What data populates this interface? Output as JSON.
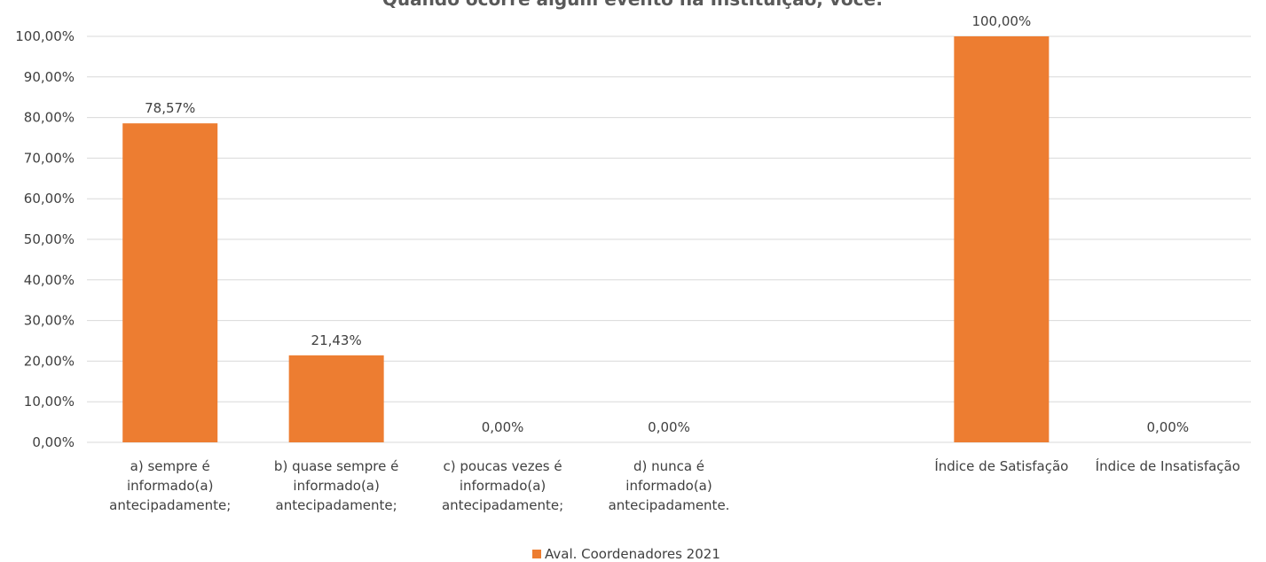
{
  "chart_data": {
    "type": "bar",
    "title": "Quando ocorre algum evento na Instituição, você:",
    "categories": [
      [
        "a) sempre é",
        "informado(a)",
        "antecipadamente;"
      ],
      [
        "b) quase sempre é",
        "informado(a)",
        "antecipadamente;"
      ],
      [
        "c) poucas vezes é",
        "informado(a)",
        "antecipadamente;"
      ],
      [
        "d) nunca é",
        "informado(a)",
        "antecipadamente."
      ],
      [
        ""
      ],
      [
        "Índice de Satisfação"
      ],
      [
        "Índice de Insatisfação"
      ]
    ],
    "series": [
      {
        "name": "Aval. Coordenadores 2021",
        "color": "#ED7D31",
        "values": [
          78.57,
          21.43,
          0,
          0,
          null,
          100,
          0
        ],
        "labels": [
          "78,57%",
          "21,43%",
          "0,00%",
          "0,00%",
          "",
          "100,00%",
          "0,00%"
        ]
      }
    ],
    "ylim": [
      0,
      100
    ],
    "yticks": [
      "0,00%",
      "10,00%",
      "20,00%",
      "30,00%",
      "40,00%",
      "50,00%",
      "60,00%",
      "70,00%",
      "80,00%",
      "90,00%",
      "100,00%"
    ],
    "xlabel": "",
    "ylabel": "",
    "grid": true,
    "legend": "bottom",
    "gridline_color": "#D9D9D9"
  }
}
